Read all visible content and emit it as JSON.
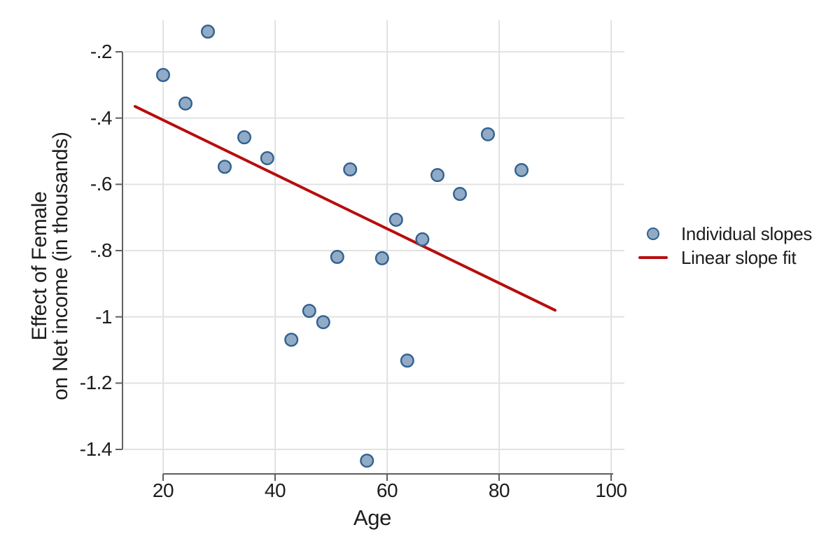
{
  "chart_data": {
    "type": "scatter",
    "title": "",
    "xlabel": "Age",
    "ylabel_lines": [
      "Effect of Female",
      "on Net income (in thousands)"
    ],
    "x_tick_values": [
      20,
      40,
      60,
      80,
      100
    ],
    "x_tick_labels": [
      "20",
      "40",
      "60",
      "80",
      "100"
    ],
    "y_tick_values": [
      -0.2,
      -0.4,
      -0.6,
      -0.8,
      -1.0,
      -1.2,
      -1.4
    ],
    "y_tick_labels": [
      "-.2",
      "-.4",
      "-.6",
      "-.8",
      "-1",
      "-1.2",
      "-1.4"
    ],
    "xlim": [
      12.75,
      102.4
    ],
    "ylim": [
      -1.47,
      -0.11
    ],
    "grid": true,
    "legend_position": "right-middle",
    "series": [
      {
        "name": "Individual slopes",
        "type": "scatter",
        "points": [
          [
            20.0,
            -0.27
          ],
          [
            24.0,
            -0.356
          ],
          [
            28.0,
            -0.139
          ],
          [
            31.0,
            -0.547
          ],
          [
            34.5,
            -0.458
          ],
          [
            38.6,
            -0.521
          ],
          [
            42.9,
            -1.069
          ],
          [
            46.1,
            -0.982
          ],
          [
            48.6,
            -1.016
          ],
          [
            51.1,
            -0.819
          ],
          [
            53.4,
            -0.555
          ],
          [
            56.4,
            -1.434
          ],
          [
            59.1,
            -0.823
          ],
          [
            61.6,
            -0.707
          ],
          [
            63.6,
            -1.132
          ],
          [
            66.3,
            -0.766
          ],
          [
            69.0,
            -0.572
          ],
          [
            73.0,
            -0.629
          ],
          [
            78.0,
            -0.449
          ],
          [
            84.0,
            -0.557
          ]
        ]
      },
      {
        "name": "Linear slope fit",
        "type": "line",
        "points": [
          [
            15.0,
            -0.365
          ],
          [
            90.0,
            -0.98
          ]
        ]
      }
    ],
    "colors": {
      "marker_fill": "#91abc7",
      "marker_stroke": "#31618f",
      "fit_line": "#b70d0d",
      "axis": "#5f5f5f",
      "grid": "#e2e2e2",
      "text": "#1c1c1c"
    }
  }
}
